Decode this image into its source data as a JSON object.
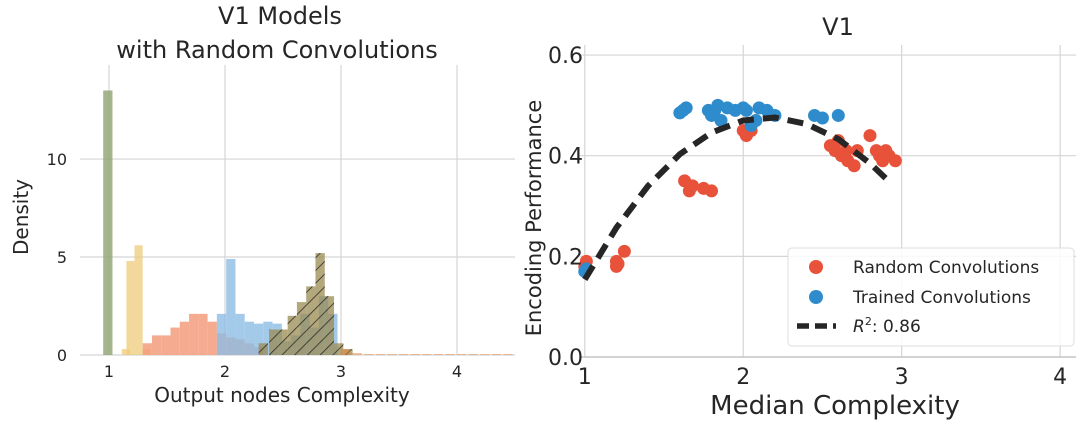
{
  "chart_data": [
    {
      "type": "histogram",
      "title": "V1 Models\nwith Random Convolutions",
      "title_lines": [
        "V1 Models",
        "with Random Convolutions"
      ],
      "xlabel": "Output nodes Complexity",
      "ylabel": "Density",
      "xlim": [
        0.75,
        4.5
      ],
      "ylim": [
        0,
        14.8
      ],
      "xticks": [
        1,
        2,
        3,
        4
      ],
      "yticks": [
        0,
        5,
        10
      ],
      "grid": true,
      "bin_width": 0.1,
      "series": [
        {
          "name": "green",
          "color": "#8fa46f",
          "alpha": 0.8,
          "hatch": false,
          "bins": [
            [
              0.95,
              13.5
            ]
          ]
        },
        {
          "name": "orange-light",
          "color": "#eecb7a",
          "alpha": 0.75,
          "hatch": false,
          "bins": [
            [
              1.11,
              0.3
            ],
            [
              1.15,
              4.8
            ],
            [
              1.22,
              5.6
            ],
            [
              1.29,
              0.3
            ]
          ]
        },
        {
          "name": "salmon",
          "color": "#f39c7c",
          "alpha": 0.85,
          "hatch": false,
          "bins": [
            [
              1.29,
              0.6
            ],
            [
              1.37,
              1.0
            ],
            [
              1.45,
              1.0
            ],
            [
              1.53,
              1.4
            ],
            [
              1.61,
              1.7
            ],
            [
              1.69,
              2.1
            ],
            [
              1.77,
              2.1
            ],
            [
              1.85,
              1.7
            ],
            [
              1.93,
              1.1
            ],
            [
              2.01,
              0.9
            ],
            [
              2.09,
              0.8
            ],
            [
              2.17,
              0.6
            ],
            [
              2.25,
              0.4
            ]
          ]
        },
        {
          "name": "blue",
          "color": "#8dbde5",
          "alpha": 0.8,
          "hatch": false,
          "bins": [
            [
              1.93,
              2.1
            ],
            [
              2.01,
              4.9
            ],
            [
              2.09,
              2.1
            ],
            [
              2.17,
              1.7
            ],
            [
              2.25,
              1.6
            ],
            [
              2.33,
              1.7
            ],
            [
              2.41,
              1.6
            ],
            [
              2.49,
              0.7
            ],
            [
              2.57,
              1.0
            ],
            [
              2.65,
              2.1
            ],
            [
              2.73,
              1.4
            ],
            [
              2.81,
              3.0
            ],
            [
              2.89,
              2.1
            ]
          ]
        },
        {
          "name": "hatched",
          "color": "#9a8a50",
          "alpha": 0.75,
          "hatch": true,
          "bins": [
            [
              2.29,
              0.6
            ],
            [
              2.38,
              1.3
            ],
            [
              2.46,
              1.3
            ],
            [
              2.54,
              2.0
            ],
            [
              2.62,
              2.7
            ],
            [
              2.7,
              3.5
            ],
            [
              2.78,
              5.2
            ],
            [
              2.86,
              3.0
            ],
            [
              2.94,
              0.6
            ],
            [
              3.02,
              0.3
            ]
          ]
        },
        {
          "name": "orange-deep",
          "color": "#e8833a",
          "alpha": 0.5,
          "hatch": false,
          "bins": [
            [
              3.0,
              0.3
            ],
            [
              3.1,
              0.1
            ],
            [
              3.2,
              0.05
            ],
            [
              3.3,
              0.05
            ],
            [
              3.4,
              0.05
            ],
            [
              3.5,
              0.05
            ],
            [
              3.6,
              0.05
            ],
            [
              3.7,
              0.05
            ],
            [
              3.8,
              0.05
            ],
            [
              3.9,
              0.05
            ],
            [
              4.0,
              0.05
            ],
            [
              4.1,
              0.05
            ],
            [
              4.2,
              0.05
            ],
            [
              4.3,
              0.05
            ],
            [
              4.4,
              0.05
            ]
          ]
        }
      ]
    },
    {
      "type": "scatter",
      "title": "V1",
      "xlabel": "Median Complexity",
      "ylabel": "Encoding Performance",
      "xlim": [
        0.97,
        4.1
      ],
      "ylim": [
        0.0,
        0.62
      ],
      "xticks": [
        1,
        2,
        3,
        4
      ],
      "yticks": [
        0.0,
        0.2,
        0.4,
        0.6
      ],
      "ytick_labels": [
        "0.0",
        "0.2",
        "0.4",
        "0.6"
      ],
      "grid": true,
      "legend_position": "lower-right",
      "series": [
        {
          "name": "Random Convolutions",
          "color": "#e8523a",
          "points": [
            [
              1.0,
              0.18
            ],
            [
              1.01,
              0.19
            ],
            [
              1.2,
              0.18
            ],
            [
              1.2,
              0.19
            ],
            [
              1.21,
              0.185
            ],
            [
              1.25,
              0.21
            ],
            [
              1.63,
              0.35
            ],
            [
              1.66,
              0.33
            ],
            [
              1.68,
              0.34
            ],
            [
              1.75,
              0.335
            ],
            [
              1.8,
              0.33
            ],
            [
              2.0,
              0.45
            ],
            [
              2.02,
              0.44
            ],
            [
              2.05,
              0.45
            ],
            [
              2.55,
              0.42
            ],
            [
              2.58,
              0.41
            ],
            [
              2.6,
              0.43
            ],
            [
              2.62,
              0.4
            ],
            [
              2.65,
              0.41
            ],
            [
              2.66,
              0.39
            ],
            [
              2.7,
              0.38
            ],
            [
              2.72,
              0.41
            ],
            [
              2.8,
              0.44
            ],
            [
              2.84,
              0.41
            ],
            [
              2.86,
              0.4
            ],
            [
              2.88,
              0.39
            ],
            [
              2.9,
              0.41
            ],
            [
              2.92,
              0.4
            ],
            [
              2.96,
              0.39
            ]
          ]
        },
        {
          "name": "Trained Convolutions",
          "color": "#2e8bcc",
          "points": [
            [
              1.0,
              0.17
            ],
            [
              1.01,
              0.175
            ],
            [
              1.6,
              0.485
            ],
            [
              1.62,
              0.49
            ],
            [
              1.64,
              0.495
            ],
            [
              1.78,
              0.49
            ],
            [
              1.8,
              0.48
            ],
            [
              1.82,
              0.49
            ],
            [
              1.84,
              0.5
            ],
            [
              1.86,
              0.47
            ],
            [
              1.9,
              0.495
            ],
            [
              1.95,
              0.49
            ],
            [
              2.0,
              0.495
            ],
            [
              2.02,
              0.49
            ],
            [
              2.05,
              0.46
            ],
            [
              2.08,
              0.47
            ],
            [
              2.1,
              0.495
            ],
            [
              2.15,
              0.49
            ],
            [
              2.2,
              0.48
            ],
            [
              2.45,
              0.48
            ],
            [
              2.5,
              0.475
            ],
            [
              2.6,
              0.48
            ]
          ]
        },
        {
          "name": "R^2: 0.86",
          "type": "fit-line",
          "color": "#262626",
          "points": [
            [
              1.0,
              0.154
            ],
            [
              1.2,
              0.257
            ],
            [
              1.4,
              0.34
            ],
            [
              1.6,
              0.403
            ],
            [
              1.8,
              0.446
            ],
            [
              2.0,
              0.47
            ],
            [
              2.2,
              0.476
            ],
            [
              2.4,
              0.463
            ],
            [
              2.6,
              0.433
            ],
            [
              2.8,
              0.385
            ],
            [
              2.9,
              0.355
            ]
          ]
        }
      ],
      "legend": {
        "random_label": "Random Convolutions",
        "trained_label": "Trained Convolutions",
        "fit_label_prefix": "R",
        "fit_label_sup": "2",
        "fit_label_suffix": ": 0.86"
      }
    }
  ]
}
